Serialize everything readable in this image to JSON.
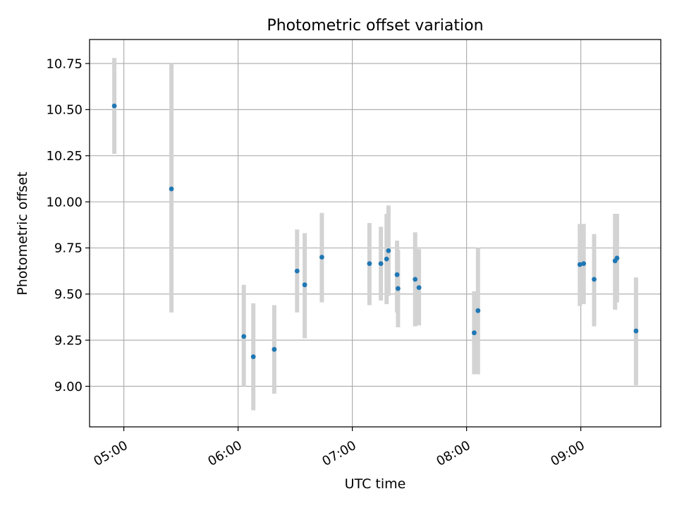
{
  "chart_data": {
    "type": "scatter",
    "title": "Photometric offset variation",
    "xlabel": "UTC time",
    "ylabel": "Photometric offset",
    "x_unit": "UTC time (HH:MM)",
    "xlim": [
      "04:42",
      "09:42"
    ],
    "ylim": [
      8.78,
      10.88
    ],
    "x_ticks": [
      "05:00",
      "06:00",
      "07:00",
      "08:00",
      "09:00"
    ],
    "y_ticks": [
      "9.00",
      "9.25",
      "9.50",
      "9.75",
      "10.00",
      "10.25",
      "10.50",
      "10.75"
    ],
    "grid": true,
    "errorbar_color": "#d3d3d3",
    "point_color": "#1f77b4",
    "points": [
      {
        "x": "04:55",
        "y": 10.52,
        "low": 10.26,
        "high": 10.78
      },
      {
        "x": "05:25",
        "y": 10.07,
        "low": 9.4,
        "high": 10.75
      },
      {
        "x": "06:03",
        "y": 9.27,
        "low": 9.0,
        "high": 9.55
      },
      {
        "x": "06:08",
        "y": 9.16,
        "low": 8.87,
        "high": 9.45
      },
      {
        "x": "06:19",
        "y": 9.2,
        "low": 8.96,
        "high": 9.44
      },
      {
        "x": "06:31",
        "y": 9.625,
        "low": 9.4,
        "high": 9.85
      },
      {
        "x": "06:35",
        "y": 9.55,
        "low": 9.26,
        "high": 9.83
      },
      {
        "x": "06:44",
        "y": 9.7,
        "low": 9.455,
        "high": 9.94
      },
      {
        "x": "07:09",
        "y": 9.665,
        "low": 9.44,
        "high": 9.885
      },
      {
        "x": "07:15",
        "y": 9.665,
        "low": 9.465,
        "high": 9.865
      },
      {
        "x": "07:18",
        "y": 9.69,
        "low": 9.445,
        "high": 9.935
      },
      {
        "x": "07:19",
        "y": 9.735,
        "low": 9.49,
        "high": 9.98
      },
      {
        "x": "07:23.5",
        "y": 9.605,
        "low": 9.4,
        "high": 9.79
      },
      {
        "x": "07:24",
        "y": 9.53,
        "low": 9.32,
        "high": 9.74
      },
      {
        "x": "07:33",
        "y": 9.58,
        "low": 9.325,
        "high": 9.835
      },
      {
        "x": "07:35",
        "y": 9.535,
        "low": 9.33,
        "high": 9.745
      },
      {
        "x": "08:04",
        "y": 9.29,
        "low": 9.065,
        "high": 9.515
      },
      {
        "x": "08:06",
        "y": 9.41,
        "low": 9.065,
        "high": 9.75
      },
      {
        "x": "08:59.5",
        "y": 9.66,
        "low": 9.435,
        "high": 9.88
      },
      {
        "x": "09:01.5",
        "y": 9.665,
        "low": 9.445,
        "high": 9.88
      },
      {
        "x": "09:07",
        "y": 9.58,
        "low": 9.325,
        "high": 9.825
      },
      {
        "x": "09:18",
        "y": 9.68,
        "low": 9.415,
        "high": 9.935
      },
      {
        "x": "09:19",
        "y": 9.695,
        "low": 9.455,
        "high": 9.935
      },
      {
        "x": "09:29",
        "y": 9.3,
        "low": 9.005,
        "high": 9.59
      }
    ]
  }
}
